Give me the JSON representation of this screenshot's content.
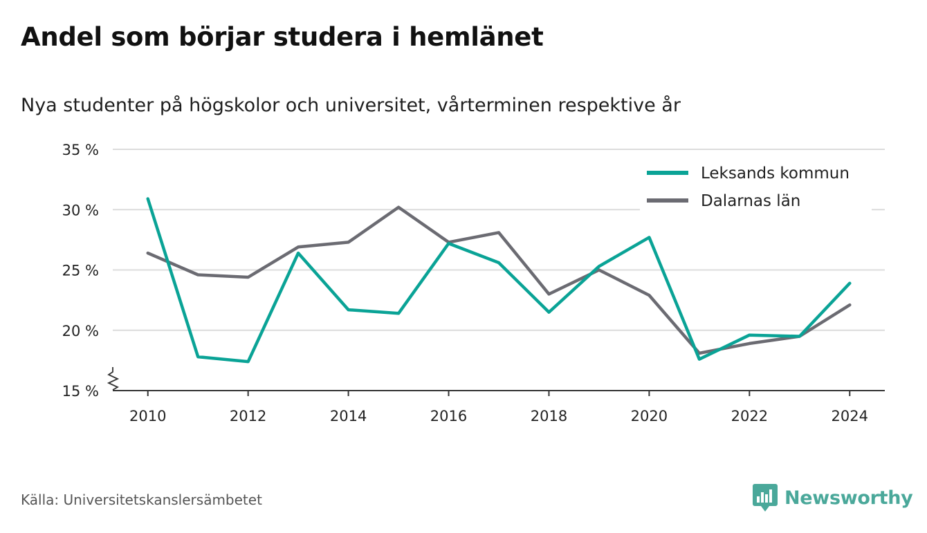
{
  "header": {
    "title": "Andel som börjar studera i hemlänet",
    "subtitle": "Nya studenter på högskolor och universitet, vårterminen respektive år"
  },
  "footer": {
    "source": "Källa: Universitetskanslersämbetet",
    "brand": "Newsworthy",
    "brand_color": "#4aa89a"
  },
  "chart_data": {
    "type": "line",
    "title": "Andel som börjar studera i hemlänet",
    "subtitle": "Nya studenter på högskolor och universitet, vårterminen respektive år",
    "xlabel": "",
    "ylabel": "",
    "x": [
      2010,
      2011,
      2012,
      2013,
      2014,
      2015,
      2016,
      2017,
      2018,
      2019,
      2020,
      2021,
      2022,
      2023,
      2024
    ],
    "xlim": [
      2009.3,
      2024.7
    ],
    "x_ticks": [
      2010,
      2012,
      2014,
      2016,
      2018,
      2020,
      2022,
      2024
    ],
    "x_tick_labels": [
      "2010",
      "2012",
      "2014",
      "2016",
      "2018",
      "2020",
      "2022",
      "2024"
    ],
    "ylim": [
      15,
      35
    ],
    "y_ticks": [
      15,
      20,
      25,
      30,
      35
    ],
    "y_tick_labels": [
      "15 %",
      "20 %",
      "25 %",
      "30 %",
      "35 %"
    ],
    "y_axis_break": true,
    "grid": "horizontal",
    "legend_position": "top-right",
    "series": [
      {
        "name": "Leksands kommun",
        "color": "#0aa396",
        "values": [
          30.9,
          17.8,
          17.4,
          26.4,
          21.7,
          21.4,
          27.2,
          25.6,
          21.5,
          25.3,
          27.7,
          17.6,
          19.6,
          19.5,
          23.9
        ]
      },
      {
        "name": "Dalarnas län",
        "color": "#6b6b72",
        "values": [
          26.4,
          24.6,
          24.4,
          26.9,
          27.3,
          30.2,
          27.3,
          28.1,
          23.0,
          25.0,
          22.9,
          18.1,
          18.9,
          19.5,
          22.1
        ]
      }
    ]
  }
}
